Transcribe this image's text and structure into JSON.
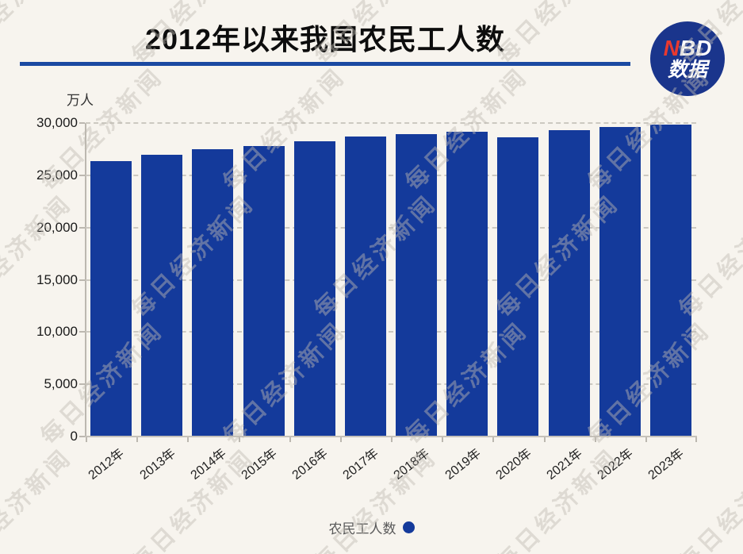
{
  "header": {
    "title": "2012年以来我国农民工人数"
  },
  "logo": {
    "n": "N",
    "bd": "BD",
    "line2": "数据"
  },
  "chart": {
    "unit_label": "万人"
  },
  "legend": {
    "label": "农民工人数"
  },
  "watermark": {
    "text": "每日经济新闻"
  },
  "colors": {
    "bar": "#143a9b",
    "title_underline": "#1b4aa2",
    "logo_circle": "#1a358c",
    "logo_red": "#e8392f",
    "background": "#f7f4ee",
    "gridline": "#ccc9c1",
    "legend_text": "#595959"
  },
  "chart_data": {
    "type": "bar",
    "title": "2012年以来我国农民工人数",
    "unit_label": "万人",
    "categories": [
      "2012年",
      "2013年",
      "2014年",
      "2015年",
      "2016年",
      "2017年",
      "2018年",
      "2019年",
      "2020年",
      "2021年",
      "2022年",
      "2023年"
    ],
    "series": [
      {
        "name": "农民工人数",
        "values": [
          26261,
          26894,
          27395,
          27747,
          28171,
          28652,
          28836,
          29077,
          28560,
          29251,
          29562,
          29753
        ]
      }
    ],
    "xlabel": "",
    "ylabel": "万人",
    "ylim": [
      0,
      30000
    ],
    "ytick_interval": 5000,
    "ytick_labels": [
      "0",
      "5,000",
      "10,000",
      "15,000",
      "20,000",
      "25,000",
      "30,000"
    ],
    "grid": "horizontal-dashed",
    "legend_position": "bottom-center",
    "bar_color": "#143a9b"
  }
}
